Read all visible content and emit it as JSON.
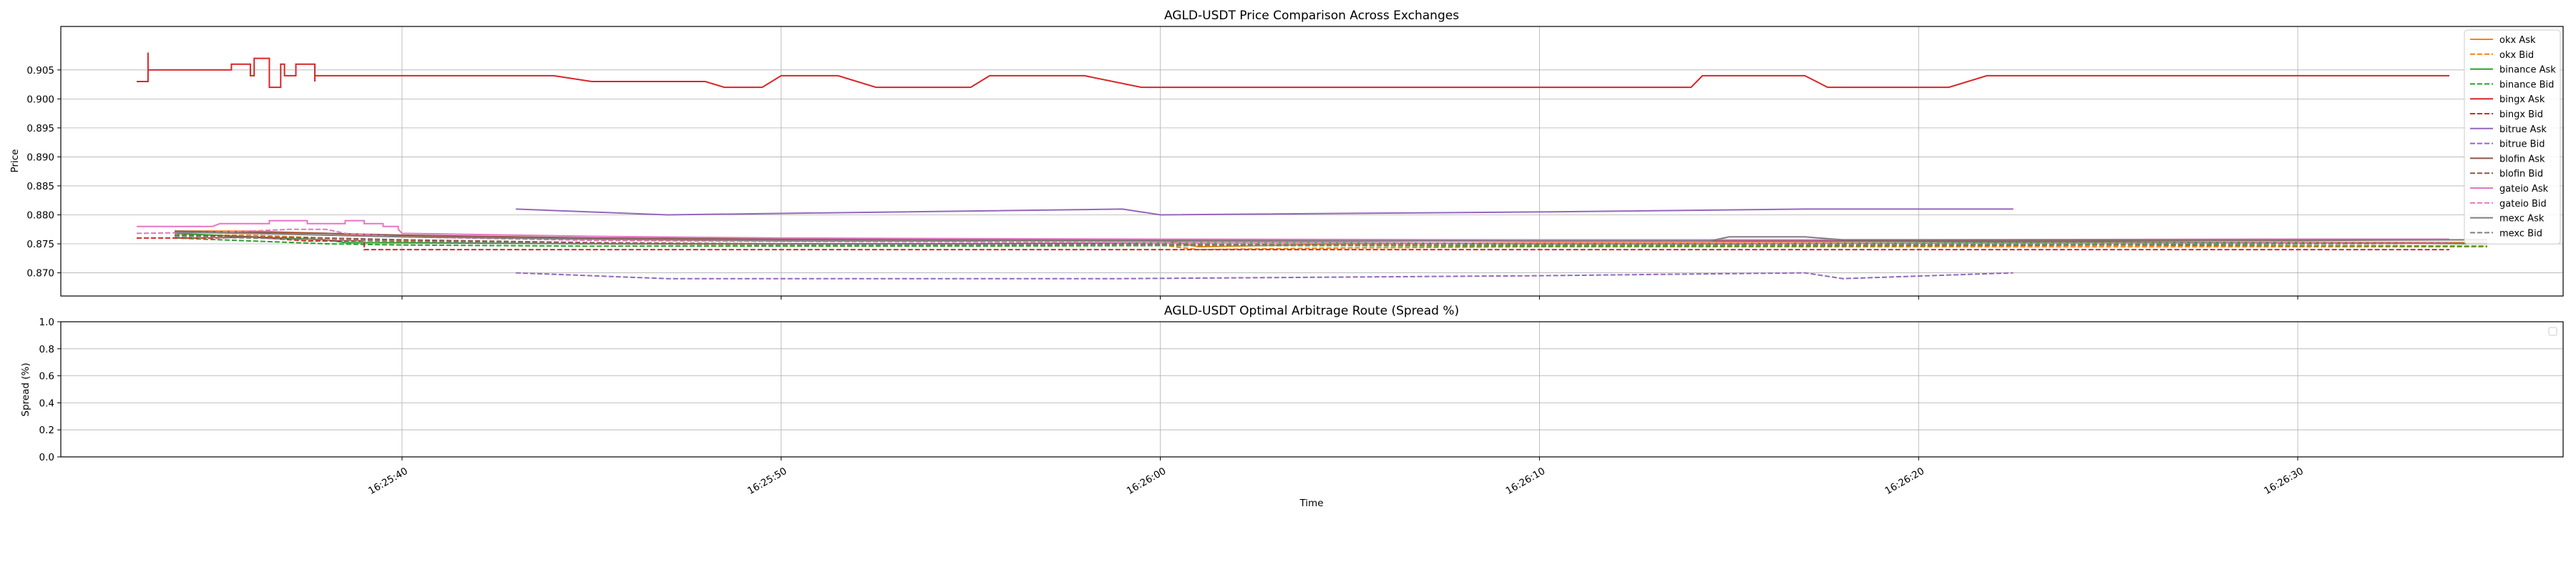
{
  "chart_data": [
    {
      "type": "line",
      "title": "AGLD-USDT Price Comparison Across Exchanges",
      "xlabel": "",
      "ylabel": "Price",
      "ylim": [
        0.866,
        0.9125
      ],
      "xlim": [
        "16:25:31",
        "16:26:37"
      ],
      "x_ticks": [
        "16:25:40",
        "16:25:50",
        "16:26:00",
        "16:26:10",
        "16:26:20",
        "16:26:30"
      ],
      "y_ticks": [
        "0.870",
        "0.875",
        "0.880",
        "0.885",
        "0.890",
        "0.895",
        "0.900",
        "0.905"
      ],
      "grid": true,
      "legend": "upper right",
      "series": [
        {
          "name": "okx Ask",
          "color": "#ff7f0e",
          "dash": false,
          "points": [
            [
              "16:25:34",
              0.8772
            ],
            [
              "16:25:36",
              0.8772
            ],
            [
              "16:25:38",
              0.8768
            ],
            [
              "16:25:40",
              0.8763
            ],
            [
              "16:25:45",
              0.8758
            ],
            [
              "16:25:50",
              0.8755
            ],
            [
              "16:25:55",
              0.8755
            ],
            [
              "16:26:00",
              0.8758
            ],
            [
              "16:26:01",
              0.8745
            ],
            [
              "16:26:05",
              0.875
            ],
            [
              "16:26:10",
              0.8752
            ],
            [
              "16:26:15",
              0.8752
            ],
            [
              "16:26:20",
              0.8752
            ],
            [
              "16:26:25",
              0.8752
            ],
            [
              "16:26:30",
              0.8753
            ],
            [
              "16:26:35",
              0.8752
            ]
          ]
        },
        {
          "name": "okx Bid",
          "color": "#ff7f0e",
          "dash": true,
          "points": [
            [
              "16:25:34",
              0.8765
            ],
            [
              "16:25:36",
              0.8765
            ],
            [
              "16:25:38",
              0.876
            ],
            [
              "16:25:40",
              0.8755
            ],
            [
              "16:25:45",
              0.875
            ],
            [
              "16:25:50",
              0.8748
            ],
            [
              "16:25:55",
              0.8748
            ],
            [
              "16:26:00",
              0.8748
            ],
            [
              "16:26:01",
              0.874
            ],
            [
              "16:26:05",
              0.8743
            ],
            [
              "16:26:10",
              0.8745
            ],
            [
              "16:26:15",
              0.8745
            ],
            [
              "16:26:20",
              0.8745
            ],
            [
              "16:26:25",
              0.8745
            ],
            [
              "16:26:30",
              0.8745
            ],
            [
              "16:26:35",
              0.8745
            ]
          ]
        },
        {
          "name": "binance Ask",
          "color": "#2ca02c",
          "dash": false,
          "points": [
            [
              "16:25:34",
              0.8768
            ],
            [
              "16:25:36",
              0.8762
            ],
            [
              "16:25:38",
              0.8757
            ],
            [
              "16:25:38.5",
              0.8752
            ],
            [
              "16:25:40",
              0.8752
            ],
            [
              "16:25:45",
              0.875
            ],
            [
              "16:25:50",
              0.875
            ],
            [
              "16:25:55",
              0.875
            ],
            [
              "16:26:00",
              0.8752
            ],
            [
              "16:26:05",
              0.8752
            ],
            [
              "16:26:10",
              0.875
            ],
            [
              "16:26:15",
              0.875
            ],
            [
              "16:26:20",
              0.8752
            ],
            [
              "16:26:25",
              0.8753
            ],
            [
              "16:26:30",
              0.8752
            ],
            [
              "16:26:35",
              0.875
            ]
          ]
        },
        {
          "name": "binance Bid",
          "color": "#2ca02c",
          "dash": true,
          "points": [
            [
              "16:25:34",
              0.876
            ],
            [
              "16:25:36",
              0.8755
            ],
            [
              "16:25:38",
              0.875
            ],
            [
              "16:25:40",
              0.8748
            ],
            [
              "16:25:45",
              0.8746
            ],
            [
              "16:25:50",
              0.8746
            ],
            [
              "16:25:55",
              0.8746
            ],
            [
              "16:26:00",
              0.8747
            ],
            [
              "16:26:05",
              0.8747
            ],
            [
              "16:26:10",
              0.8746
            ],
            [
              "16:26:15",
              0.8746
            ],
            [
              "16:26:20",
              0.8747
            ],
            [
              "16:26:25",
              0.8748
            ],
            [
              "16:26:30",
              0.8747
            ],
            [
              "16:26:35",
              0.8746
            ]
          ]
        },
        {
          "name": "bingx Ask",
          "color": "#d62728",
          "dash": false,
          "points": [
            [
              "16:25:33",
              0.903
            ],
            [
              "16:25:33.3",
              0.903
            ],
            [
              "16:25:33.3",
              0.908
            ],
            [
              "16:25:33.3",
              0.905
            ],
            [
              "16:25:35.5",
              0.905
            ],
            [
              "16:25:35.5",
              0.906
            ],
            [
              "16:25:36",
              0.906
            ],
            [
              "16:25:36",
              0.904
            ],
            [
              "16:25:36.1",
              0.904
            ],
            [
              "16:25:36.1",
              0.907
            ],
            [
              "16:25:36.5",
              0.907
            ],
            [
              "16:25:36.5",
              0.902
            ],
            [
              "16:25:36.8",
              0.902
            ],
            [
              "16:25:36.8",
              0.906
            ],
            [
              "16:25:36.9",
              0.906
            ],
            [
              "16:25:36.9",
              0.904
            ],
            [
              "16:25:37.2",
              0.904
            ],
            [
              "16:25:37.2",
              0.906
            ],
            [
              "16:25:37.7",
              0.906
            ],
            [
              "16:25:37.7",
              0.903
            ],
            [
              "16:25:37.7",
              0.904
            ],
            [
              "16:25:44",
              0.904
            ],
            [
              "16:25:45",
              0.903
            ],
            [
              "16:25:48",
              0.903
            ],
            [
              "16:25:48.5",
              0.902
            ],
            [
              "16:25:49.5",
              0.902
            ],
            [
              "16:25:50",
              0.904
            ],
            [
              "16:25:51.5",
              0.904
            ],
            [
              "16:25:52.5",
              0.902
            ],
            [
              "16:25:55",
              0.902
            ],
            [
              "16:25:55.5",
              0.904
            ],
            [
              "16:25:58",
              0.904
            ],
            [
              "16:25:59.5",
              0.902
            ],
            [
              "16:26:14",
              0.902
            ],
            [
              "16:26:14.3",
              0.904
            ],
            [
              "16:26:17",
              0.904
            ],
            [
              "16:26:17.6",
              0.902
            ],
            [
              "16:26:20.8",
              0.902
            ],
            [
              "16:26:21.8",
              0.904
            ],
            [
              "16:26:34",
              0.904
            ]
          ]
        },
        {
          "name": "bingx Bid",
          "color": "#d62728",
          "dash": true,
          "points": [
            [
              "16:25:33",
              0.876
            ],
            [
              "16:25:35",
              0.876
            ],
            [
              "16:25:36",
              0.8762
            ],
            [
              "16:25:37.5",
              0.8755
            ],
            [
              "16:25:39",
              0.8755
            ],
            [
              "16:25:39",
              0.874
            ],
            [
              "16:25:45",
              0.874
            ],
            [
              "16:25:50",
              0.874
            ],
            [
              "16:26:00",
              0.874
            ],
            [
              "16:26:10",
              0.874
            ],
            [
              "16:26:20",
              0.874
            ],
            [
              "16:26:30",
              0.874
            ],
            [
              "16:26:34",
              0.874
            ]
          ]
        },
        {
          "name": "bitrue Ask",
          "color": "#9467bd",
          "dash": false,
          "points": [
            [
              "16:25:43",
              0.881
            ],
            [
              "16:25:47",
              0.88
            ],
            [
              "16:25:59",
              0.881
            ],
            [
              "16:26:00",
              0.88
            ],
            [
              "16:26:10",
              0.8805
            ],
            [
              "16:26:17",
              0.881
            ],
            [
              "16:26:22.5",
              0.881
            ]
          ]
        },
        {
          "name": "bitrue Bid",
          "color": "#9467bd",
          "dash": true,
          "points": [
            [
              "16:25:43",
              0.87
            ],
            [
              "16:25:47",
              0.869
            ],
            [
              "16:25:59",
              0.869
            ],
            [
              "16:26:10",
              0.8695
            ],
            [
              "16:26:17",
              0.87
            ],
            [
              "16:26:18",
              0.869
            ],
            [
              "16:26:22.5",
              0.87
            ]
          ]
        },
        {
          "name": "blofin Ask",
          "color": "#8c564b",
          "dash": false,
          "points": [
            [
              "16:25:34",
              0.8772
            ],
            [
              "16:25:36",
              0.877
            ],
            [
              "16:25:38",
              0.8768
            ],
            [
              "16:25:40",
              0.8765
            ],
            [
              "16:25:45",
              0.876
            ],
            [
              "16:25:50",
              0.8758
            ],
            [
              "16:26:00",
              0.8756
            ],
            [
              "16:26:10",
              0.8755
            ],
            [
              "16:26:20",
              0.8755
            ],
            [
              "16:26:30",
              0.8756
            ],
            [
              "16:26:35",
              0.8757
            ]
          ]
        },
        {
          "name": "blofin Bid",
          "color": "#8c564b",
          "dash": true,
          "points": [
            [
              "16:25:34",
              0.8765
            ],
            [
              "16:25:36",
              0.8762
            ],
            [
              "16:25:38",
              0.876
            ],
            [
              "16:25:40",
              0.8757
            ],
            [
              "16:25:45",
              0.8752
            ],
            [
              "16:25:50",
              0.875
            ],
            [
              "16:26:00",
              0.8749
            ],
            [
              "16:26:10",
              0.8748
            ],
            [
              "16:26:20",
              0.8749
            ],
            [
              "16:26:30",
              0.875
            ],
            [
              "16:26:35",
              0.8751
            ]
          ]
        },
        {
          "name": "gateio Ask",
          "color": "#e377c2",
          "dash": false,
          "points": [
            [
              "16:25:33",
              0.878
            ],
            [
              "16:25:35",
              0.878
            ],
            [
              "16:25:35.2",
              0.8785
            ],
            [
              "16:25:36.5",
              0.8785
            ],
            [
              "16:25:36.5",
              0.879
            ],
            [
              "16:25:37.5",
              0.879
            ],
            [
              "16:25:37.5",
              0.8785
            ],
            [
              "16:25:38.5",
              0.8785
            ],
            [
              "16:25:38.5",
              0.879
            ],
            [
              "16:25:39",
              0.879
            ],
            [
              "16:25:39",
              0.8785
            ],
            [
              "16:25:39.5",
              0.8785
            ],
            [
              "16:25:39.5",
              0.878
            ],
            [
              "16:25:39.9",
              0.878
            ],
            [
              "16:25:39.9",
              0.8775
            ],
            [
              "16:25:40",
              0.8768
            ],
            [
              "16:25:45",
              0.8763
            ],
            [
              "16:25:50",
              0.876
            ],
            [
              "16:26:00",
              0.8758
            ],
            [
              "16:26:10",
              0.8757
            ],
            [
              "16:26:20",
              0.8757
            ],
            [
              "16:26:30",
              0.8758
            ],
            [
              "16:26:34",
              0.8758
            ]
          ]
        },
        {
          "name": "gateio Bid",
          "color": "#e377c2",
          "dash": true,
          "points": [
            [
              "16:25:33",
              0.8768
            ],
            [
              "16:25:35",
              0.877
            ],
            [
              "16:25:36",
              0.8772
            ],
            [
              "16:25:37",
              0.8775
            ],
            [
              "16:25:38",
              0.8775
            ],
            [
              "16:25:38.5",
              0.8768
            ],
            [
              "16:25:40",
              0.8762
            ],
            [
              "16:25:45",
              0.8756
            ],
            [
              "16:25:50",
              0.8754
            ],
            [
              "16:26:00",
              0.8752
            ],
            [
              "16:26:10",
              0.8751
            ],
            [
              "16:26:20",
              0.8751
            ],
            [
              "16:26:30",
              0.8752
            ],
            [
              "16:26:34",
              0.8752
            ]
          ]
        },
        {
          "name": "mexc Ask",
          "color": "#7f7f7f",
          "dash": false,
          "points": [
            [
              "16:25:34",
              0.877
            ],
            [
              "16:25:36",
              0.8768
            ],
            [
              "16:25:38",
              0.8765
            ],
            [
              "16:25:40",
              0.8762
            ],
            [
              "16:25:45",
              0.8758
            ],
            [
              "16:25:50",
              0.8756
            ],
            [
              "16:26:00",
              0.8755
            ],
            [
              "16:26:10",
              0.8755
            ],
            [
              "16:26:14.5",
              0.8755
            ],
            [
              "16:26:15",
              0.8762
            ],
            [
              "16:26:17",
              0.8762
            ],
            [
              "16:26:18",
              0.8757
            ],
            [
              "16:26:25",
              0.8757
            ],
            [
              "16:26:35",
              0.8757
            ]
          ]
        },
        {
          "name": "mexc Bid",
          "color": "#7f7f7f",
          "dash": true,
          "points": [
            [
              "16:25:34",
              0.8762
            ],
            [
              "16:25:36",
              0.876
            ],
            [
              "16:25:38",
              0.8757
            ],
            [
              "16:25:40",
              0.8754
            ],
            [
              "16:25:45",
              0.875
            ],
            [
              "16:25:50",
              0.8749
            ],
            [
              "16:26:00",
              0.8748
            ],
            [
              "16:26:10",
              0.8748
            ],
            [
              "16:26:20",
              0.8749
            ],
            [
              "16:26:30",
              0.875
            ],
            [
              "16:26:35",
              0.8751
            ]
          ]
        }
      ]
    },
    {
      "type": "line",
      "title": "AGLD-USDT Optimal Arbitrage Route (Spread %)",
      "xlabel": "Time",
      "ylabel": "Spread (%)",
      "ylim": [
        0.0,
        1.0
      ],
      "xlim": [
        "16:25:31",
        "16:26:37"
      ],
      "x_ticks": [
        "16:25:40",
        "16:25:50",
        "16:26:00",
        "16:26:10",
        "16:26:20",
        "16:26:30"
      ],
      "y_ticks": [
        "0.0",
        "0.2",
        "0.4",
        "0.6",
        "0.8",
        "1.0"
      ],
      "grid": true,
      "legend": "upper right (empty)",
      "series": []
    }
  ]
}
